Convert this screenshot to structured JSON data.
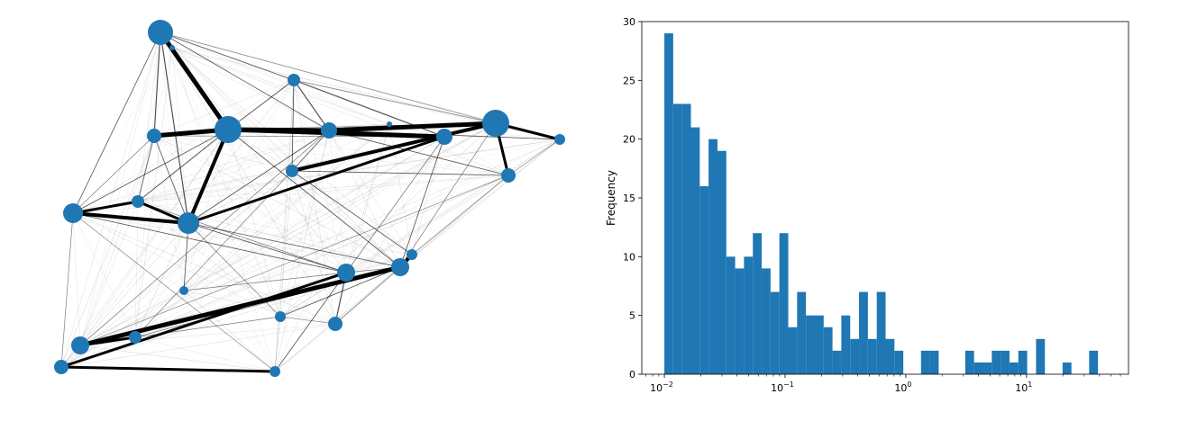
{
  "colors": {
    "node": "#1f77b4",
    "bar": "#1f77b4",
    "edge": "#000000",
    "axis": "#000000"
  },
  "chart_data": [
    {
      "type": "network",
      "title": "",
      "nodes": [
        {
          "id": 0,
          "size": 14
        },
        {
          "id": 1,
          "size": 3
        },
        {
          "id": 2,
          "size": 7
        },
        {
          "id": 3,
          "size": 8
        },
        {
          "id": 4,
          "size": 15
        },
        {
          "id": 5,
          "size": 9
        },
        {
          "id": 6,
          "size": 3
        },
        {
          "id": 7,
          "size": 7
        },
        {
          "id": 8,
          "size": 15
        },
        {
          "id": 9,
          "size": 6
        },
        {
          "id": 10,
          "size": 8
        },
        {
          "id": 11,
          "size": 9
        },
        {
          "id": 12,
          "size": 11
        },
        {
          "id": 13,
          "size": 7
        },
        {
          "id": 14,
          "size": 12
        },
        {
          "id": 15,
          "size": 5
        },
        {
          "id": 16,
          "size": 10
        },
        {
          "id": 17,
          "size": 6
        },
        {
          "id": 18,
          "size": 10
        },
        {
          "id": 19,
          "size": 8
        },
        {
          "id": 20,
          "size": 6
        },
        {
          "id": 21,
          "size": 7
        },
        {
          "id": 22,
          "size": 10
        },
        {
          "id": 23,
          "size": 8
        },
        {
          "id": 24,
          "size": 6
        }
      ],
      "edges": [
        {
          "s": 0,
          "t": 4,
          "w": 5
        },
        {
          "s": 0,
          "t": 1,
          "w": 3
        },
        {
          "s": 4,
          "t": 3,
          "w": 5
        },
        {
          "s": 4,
          "t": 5,
          "w": 5
        },
        {
          "s": 5,
          "t": 8,
          "w": 5
        },
        {
          "s": 8,
          "t": 7,
          "w": 4
        },
        {
          "s": 8,
          "t": 10,
          "w": 3
        },
        {
          "s": 8,
          "t": 9,
          "w": 3
        },
        {
          "s": 4,
          "t": 11,
          "w": 5
        },
        {
          "s": 4,
          "t": 14,
          "w": 4
        },
        {
          "s": 11,
          "t": 14,
          "w": 3
        },
        {
          "s": 12,
          "t": 13,
          "w": 3
        },
        {
          "s": 12,
          "t": 14,
          "w": 4
        },
        {
          "s": 13,
          "t": 14,
          "w": 3
        },
        {
          "s": 18,
          "t": 20,
          "w": 4
        },
        {
          "s": 18,
          "t": 22,
          "w": 5
        },
        {
          "s": 22,
          "t": 21,
          "w": 3
        },
        {
          "s": 23,
          "t": 24,
          "w": 3
        },
        {
          "s": 23,
          "t": 16,
          "w": 3
        },
        {
          "s": 16,
          "t": 19,
          "w": 2
        },
        {
          "s": 11,
          "t": 5,
          "w": 2
        },
        {
          "s": 2,
          "t": 5,
          "w": 2
        },
        {
          "s": 2,
          "t": 11,
          "w": 2
        },
        {
          "s": 0,
          "t": 3,
          "w": 2
        },
        {
          "s": 0,
          "t": 14,
          "w": 2
        },
        {
          "s": 0,
          "t": 12,
          "w": 1.4
        },
        {
          "s": 0,
          "t": 8,
          "w": 1.2
        },
        {
          "s": 0,
          "t": 5,
          "w": 1.4
        },
        {
          "s": 0,
          "t": 2,
          "w": 1.4
        },
        {
          "s": 2,
          "t": 4,
          "w": 1.4
        },
        {
          "s": 2,
          "t": 7,
          "w": 1.4
        },
        {
          "s": 2,
          "t": 8,
          "w": 1.2
        },
        {
          "s": 3,
          "t": 14,
          "w": 1.4
        },
        {
          "s": 3,
          "t": 13,
          "w": 1.4
        },
        {
          "s": 4,
          "t": 12,
          "w": 1.4
        },
        {
          "s": 4,
          "t": 13,
          "w": 1.4
        },
        {
          "s": 4,
          "t": 18,
          "w": 1.4
        },
        {
          "s": 4,
          "t": 8,
          "w": 1.2
        },
        {
          "s": 5,
          "t": 9,
          "w": 1.4
        },
        {
          "s": 5,
          "t": 10,
          "w": 1.4
        },
        {
          "s": 5,
          "t": 7,
          "w": 1.4
        },
        {
          "s": 5,
          "t": 14,
          "w": 1.4
        },
        {
          "s": 7,
          "t": 10,
          "w": 1.4
        },
        {
          "s": 7,
          "t": 11,
          "w": 1.4
        },
        {
          "s": 7,
          "t": 20,
          "w": 1.4
        },
        {
          "s": 7,
          "t": 21,
          "w": 1.2
        },
        {
          "s": 8,
          "t": 11,
          "w": 1.2
        },
        {
          "s": 8,
          "t": 18,
          "w": 1.2
        },
        {
          "s": 9,
          "t": 10,
          "w": 1.2
        },
        {
          "s": 10,
          "t": 20,
          "w": 1.2
        },
        {
          "s": 11,
          "t": 18,
          "w": 1.4
        },
        {
          "s": 11,
          "t": 16,
          "w": 1.2
        },
        {
          "s": 12,
          "t": 16,
          "w": 1.4
        },
        {
          "s": 12,
          "t": 23,
          "w": 1.2
        },
        {
          "s": 12,
          "t": 3,
          "w": 1.2
        },
        {
          "s": 13,
          "t": 16,
          "w": 1.2
        },
        {
          "s": 14,
          "t": 16,
          "w": 1.4
        },
        {
          "s": 14,
          "t": 15,
          "w": 1.4
        },
        {
          "s": 14,
          "t": 18,
          "w": 1.4
        },
        {
          "s": 14,
          "t": 17,
          "w": 1.2
        },
        {
          "s": 15,
          "t": 16,
          "w": 1.2
        },
        {
          "s": 16,
          "t": 24,
          "w": 1.4
        },
        {
          "s": 16,
          "t": 18,
          "w": 1.2
        },
        {
          "s": 17,
          "t": 18,
          "w": 1.4
        },
        {
          "s": 17,
          "t": 19,
          "w": 1.2
        },
        {
          "s": 17,
          "t": 21,
          "w": 1.2
        },
        {
          "s": 18,
          "t": 19,
          "w": 1.2
        },
        {
          "s": 18,
          "t": 21,
          "w": 1.2
        },
        {
          "s": 12,
          "t": 24,
          "w": 1.2
        },
        {
          "s": 10,
          "t": 22,
          "w": 1.2
        },
        {
          "s": 5,
          "t": 22,
          "w": 1.2
        },
        {
          "s": 3,
          "t": 11,
          "w": 1.2
        }
      ]
    },
    {
      "type": "bar",
      "title": "",
      "xlabel": "",
      "ylabel": "Frequency",
      "xscale": "log",
      "xlim": [
        0.0065,
        70
      ],
      "ylim": [
        0,
        30
      ],
      "yticks": [
        "0",
        "5",
        "10",
        "15",
        "20",
        "25",
        "30"
      ],
      "xticks": [
        {
          "label": "10",
          "exp": "−2",
          "value": 0.01
        },
        {
          "label": "10",
          "exp": "−1",
          "value": 0.1
        },
        {
          "label": "10",
          "exp": "0",
          "value": 1
        },
        {
          "label": "10",
          "exp": "1",
          "value": 10
        }
      ],
      "bins": {
        "start": 0.01,
        "end": 46.3,
        "count": 50
      },
      "values": [
        29,
        23,
        23,
        21,
        16,
        20,
        19,
        10,
        9,
        10,
        12,
        9,
        7,
        12,
        4,
        7,
        5,
        5,
        4,
        2,
        5,
        3,
        7,
        3,
        7,
        3,
        2,
        0,
        0,
        2,
        2,
        0,
        0,
        0,
        2,
        1,
        1,
        2,
        2,
        1,
        2,
        0,
        3,
        0,
        0,
        1,
        0,
        0,
        2,
        0
      ],
      "grid": false,
      "legend": "none"
    }
  ]
}
